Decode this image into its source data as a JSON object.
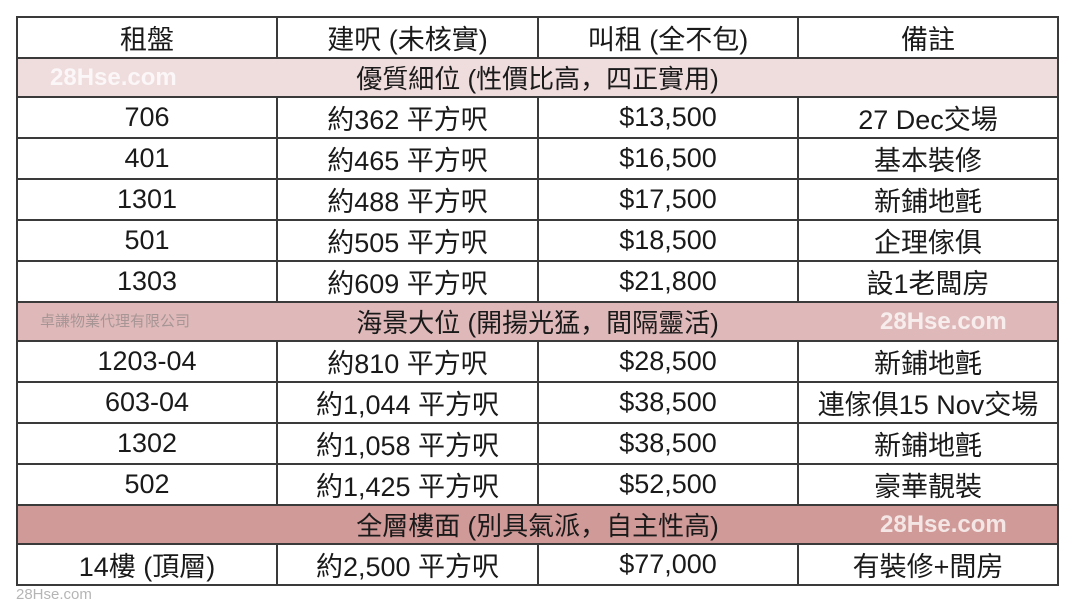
{
  "headers": [
    "租盤",
    "建呎 (未核實)",
    "叫租 (全不包)",
    "備註"
  ],
  "sections": [
    {
      "title": "優質細位  (性價比高，四正實用)",
      "color": "#efdcdd",
      "rows": [
        [
          "706",
          "約362 平方呎",
          "$13,500",
          "27 Dec交場"
        ],
        [
          "401",
          "約465 平方呎",
          "$16,500",
          "基本裝修"
        ],
        [
          "1301",
          "約488 平方呎",
          "$17,500",
          "新鋪地氈"
        ],
        [
          "501",
          "約505 平方呎",
          "$18,500",
          "企理傢俱"
        ],
        [
          "1303",
          "約609 平方呎",
          "$21,800",
          "設1老闆房"
        ]
      ]
    },
    {
      "title": "海景大位  (開揚光猛，間隔靈活)",
      "color": "#dfb9b9",
      "rows": [
        [
          "1203-04",
          "約810 平方呎",
          "$28,500",
          "新鋪地氈"
        ],
        [
          "603-04",
          "約1,044 平方呎",
          "$38,500",
          "連傢俱15 Nov交場"
        ],
        [
          "1302",
          "約1,058 平方呎",
          "$38,500",
          "新鋪地氈"
        ],
        [
          "502",
          "約1,425 平方呎",
          "$52,500",
          "豪華靚裝"
        ]
      ]
    },
    {
      "title": "全層樓面  (別具氣派，自主性高)",
      "color": "#d09a98",
      "rows": [
        [
          "14樓 (頂層)",
          "約2,500 平方呎",
          "$77,000",
          "有裝修+間房"
        ]
      ]
    }
  ],
  "watermarks": {
    "site": "28Hse.com",
    "agency": "卓謙物業代理有限公司"
  }
}
